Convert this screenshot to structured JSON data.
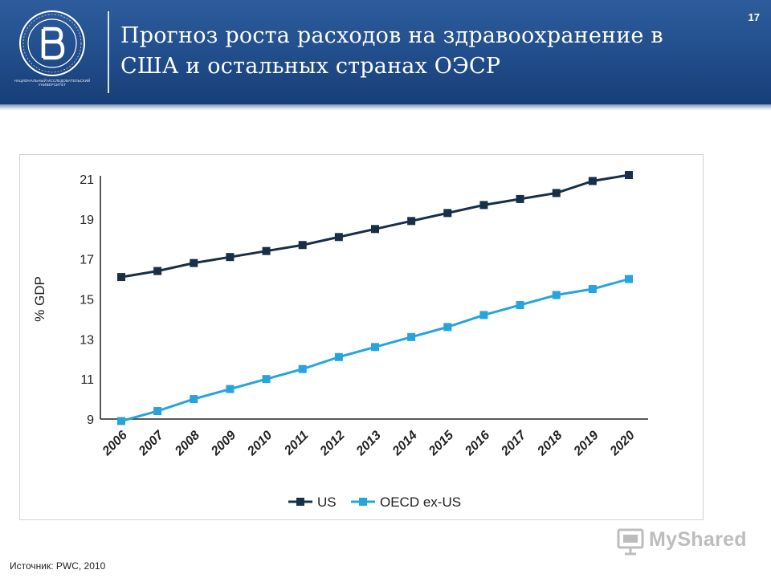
{
  "header": {
    "title_line1": "Прогноз роста расходов на здравоохранение в",
    "title_line2": "США и остальных странах ОЭСР",
    "page_number": "17",
    "logo_caption": "НАЦИОНАЛЬНЫЙ ИССЛЕДОВАТЕЛЬСКИЙ УНИВЕРСИТЕТ"
  },
  "colors": {
    "header_blue": "#204c8a",
    "us_series": "#173048",
    "oecd_series": "#27a4dc"
  },
  "chart_data": {
    "type": "line",
    "x": [
      "2006",
      "2007",
      "2008",
      "2009",
      "2010",
      "2011",
      "2012",
      "2013",
      "2014",
      "2015",
      "2016",
      "2017",
      "2018",
      "2019",
      "2020"
    ],
    "series": [
      {
        "name": "US",
        "color": "#173048",
        "values": [
          16.1,
          16.4,
          16.8,
          17.1,
          17.4,
          17.7,
          18.1,
          18.5,
          18.9,
          19.3,
          19.7,
          20.0,
          20.3,
          20.9,
          21.2
        ]
      },
      {
        "name": "OECD ex-US",
        "color": "#27a4dc",
        "values": [
          8.9,
          9.4,
          10.0,
          10.5,
          11.0,
          11.5,
          12.1,
          12.6,
          13.1,
          13.6,
          14.2,
          14.7,
          15.2,
          15.5,
          16.0
        ]
      }
    ],
    "ylabel": "% GDP",
    "yticks": [
      9,
      11,
      13,
      15,
      17,
      19,
      21
    ],
    "ylim": [
      9,
      21
    ],
    "grid": false,
    "legend_position": "bottom-center"
  },
  "footer": {
    "source": "Источник: PWC, 2010",
    "watermark": "MyShared"
  }
}
